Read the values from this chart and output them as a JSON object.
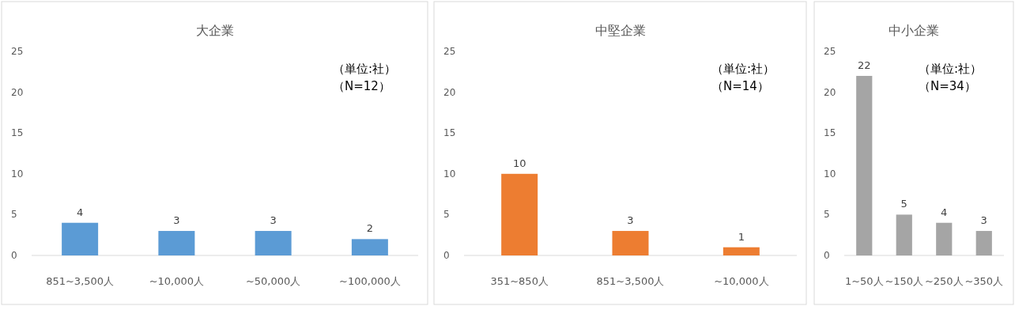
{
  "chart_data": [
    {
      "type": "bar",
      "title": "大企業",
      "categories": [
        "851~3,500人",
        "~10,000人",
        "~50,000人",
        "~100,000人"
      ],
      "series": [
        {
          "color": "#5b9bd5",
          "values": [
            4,
            3,
            3,
            2
          ]
        }
      ],
      "ylim": [
        0,
        25
      ],
      "yticks": [
        0,
        5,
        10,
        15,
        20,
        25
      ],
      "data_labels": true,
      "annotations": [
        "（単位:社）",
        "（N=12）"
      ]
    },
    {
      "type": "bar",
      "title": "中堅企業",
      "categories": [
        "351~850人",
        "851~3,500人",
        "~10,000人"
      ],
      "series": [
        {
          "color": "#ed7d31",
          "values": [
            10,
            3,
            1
          ]
        }
      ],
      "ylim": [
        0,
        25
      ],
      "yticks": [
        0,
        5,
        10,
        15,
        20,
        25
      ],
      "data_labels": true,
      "annotations": [
        "（単位:社）",
        "（N=14）"
      ]
    },
    {
      "type": "bar",
      "title": "中小企業",
      "categories": [
        "1~50人",
        "~150人",
        "~250人",
        "~350人"
      ],
      "series": [
        {
          "color": "#a5a5a5",
          "values": [
            22,
            5,
            4,
            3
          ]
        }
      ],
      "ylim": [
        0,
        25
      ],
      "yticks": [
        0,
        5,
        10,
        15,
        20,
        25
      ],
      "data_labels": true,
      "annotations": [
        "（単位:社）",
        "（N=34）"
      ]
    }
  ]
}
